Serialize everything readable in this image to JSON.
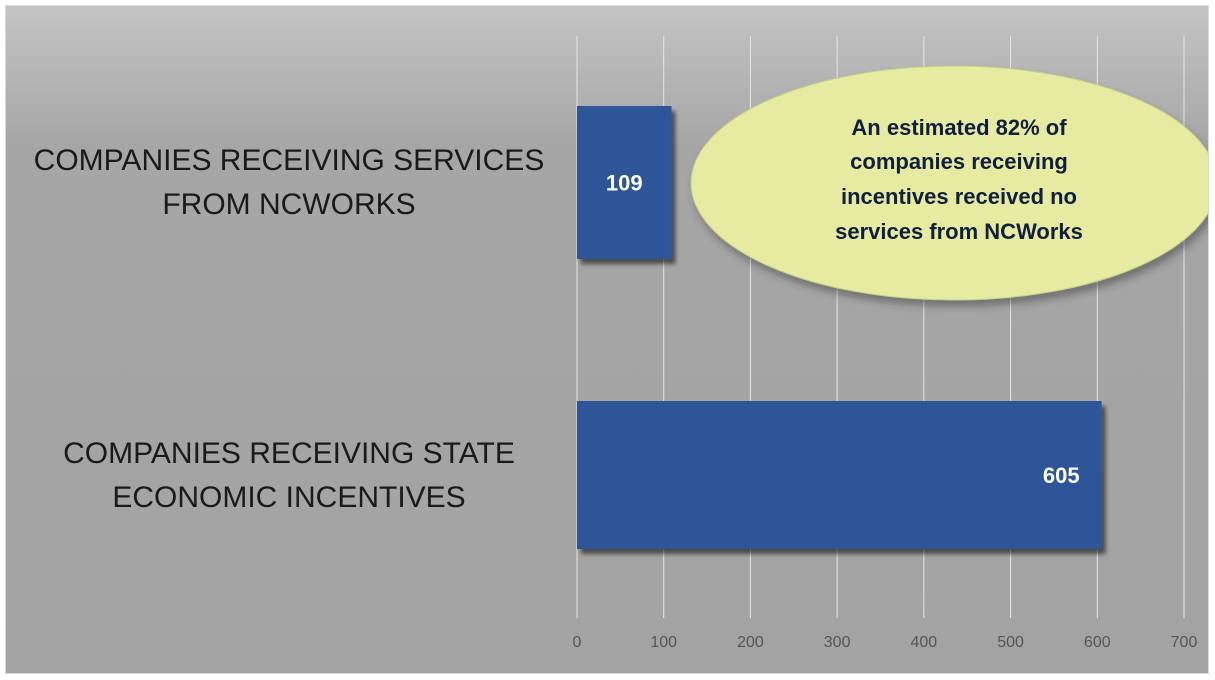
{
  "chart_data": {
    "type": "bar",
    "orientation": "horizontal",
    "categories": [
      [
        "COMPANIES RECEIVING SERVICES",
        "FROM NCWORKS"
      ],
      [
        "COMPANIES RECEIVING STATE",
        "ECONOMIC INCENTIVES"
      ]
    ],
    "values": [
      109,
      605
    ],
    "data_labels": [
      "109",
      "605"
    ],
    "xlim": [
      0,
      700
    ],
    "x_ticks": [
      "0",
      "100",
      "200",
      "300",
      "400",
      "500",
      "600",
      "700"
    ],
    "grid": true,
    "bar_color": "#2F5597",
    "callout": {
      "lines": [
        "An estimated 82% of",
        "companies receiving",
        "incentives received no",
        "services from NCWorks"
      ],
      "fill": "#E6EBA1"
    }
  }
}
